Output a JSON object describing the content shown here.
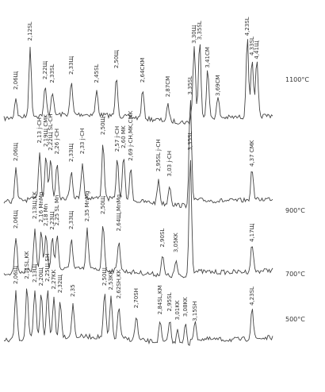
{
  "traces": [
    {
      "temperature": "1100°C",
      "peaks": [
        "2,06Щ",
        "2,12SL",
        "2,22Щ",
        "2,33SL",
        "2,33Щ",
        "2,45SL",
        "2,50Щ",
        "2,64СКМ",
        "2,87СМ",
        "3,30Щ",
        "3,35SL",
        "3,41СМ",
        "3,69СМ",
        "4,23SL",
        "4,33SL",
        "4,41Щ"
      ]
    },
    {
      "temperature": "900°C",
      "peaks": [
        "2,06Щ",
        "2,13 j-CH",
        "2,19Щ CMK",
        "2,22Щ SL-CH",
        "2,26 j-CH",
        "2,33Щ",
        "2,33 j-CH",
        "2,50Щ",
        "2,57 j-CH",
        "2,60 MK",
        "2,69 j-CH,MK,CMK",
        "2,95SL j-CH",
        "3,03 j-CH",
        "3,35SL",
        "4,37 CMK"
      ]
    },
    {
      "temperature": "700°C",
      "peaks": [
        "2,06Щ",
        "2,13Щ,KK",
        "2,16 MnMg",
        "2,18 Mn",
        "2,23Щ",
        "2,25 SL Mn",
        "2,33Щ",
        "2,35 MnMg",
        "2,50Щ",
        "2,64Щ,MnMg",
        "2,90SL",
        "3,05KK",
        "3,35SL",
        "4,17Щ"
      ]
    },
    {
      "temperature": "500°C",
      "peaks": [
        "2,06Щ",
        "2,11SL,KK",
        "2,13Щ",
        "2,20Щ",
        "2,25Щ SH",
        "2,27KK",
        "2,32Щ",
        "2,35",
        "2,50Щ",
        "2,53KK",
        "2,62SH,KK",
        "2,70SH",
        "2,84SL,KM",
        "2,95SL",
        "3,01KK",
        "3,08KK",
        "3,15SH",
        "4,23SL"
      ]
    }
  ]
}
